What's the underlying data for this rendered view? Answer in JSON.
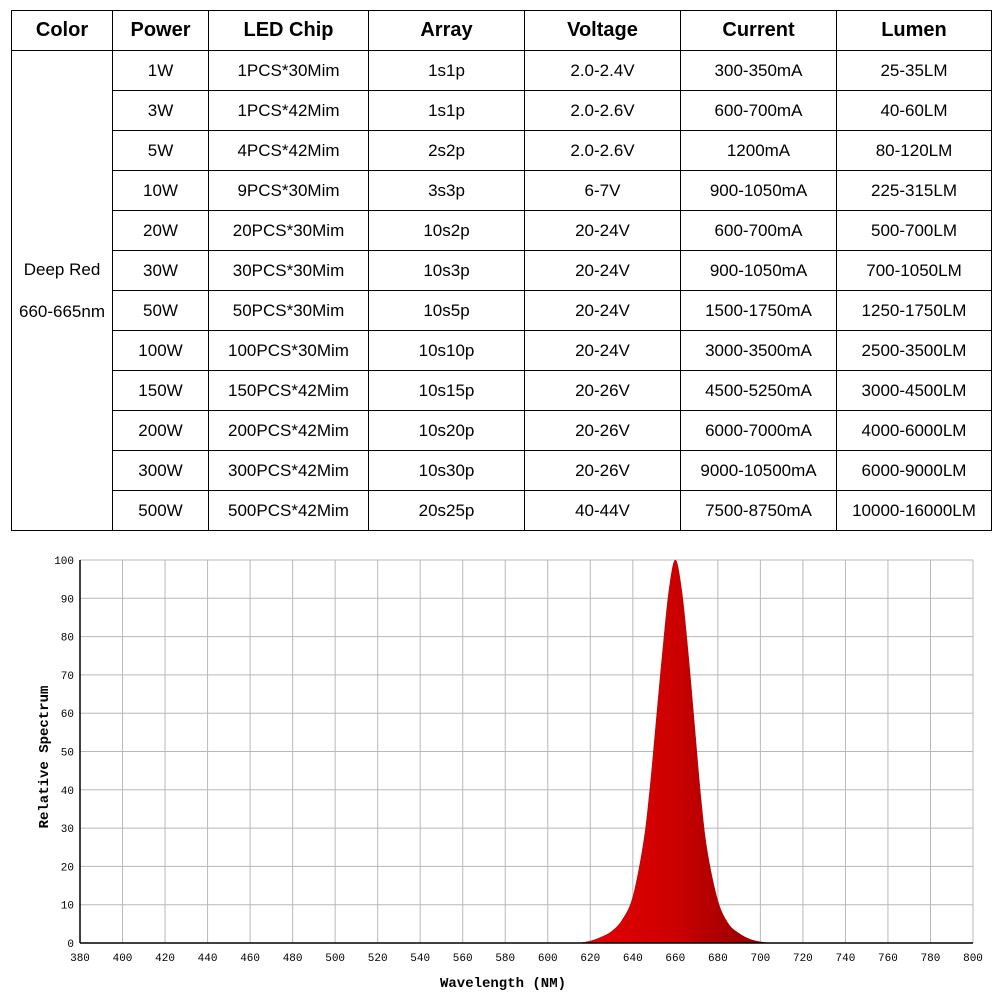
{
  "table": {
    "headers": [
      "Color",
      "Power",
      "LED Chip",
      "Array",
      "Voltage",
      "Current",
      "Lumen"
    ],
    "color_label": [
      "Deep Red",
      "660-665nm"
    ],
    "rows": [
      [
        "1W",
        "1PCS*30Mim",
        "1s1p",
        "2.0-2.4V",
        "300-350mA",
        "25-35LM"
      ],
      [
        "3W",
        "1PCS*42Mim",
        "1s1p",
        "2.0-2.6V",
        "600-700mA",
        "40-60LM"
      ],
      [
        "5W",
        "4PCS*42Mim",
        "2s2p",
        "2.0-2.6V",
        "1200mA",
        "80-120LM"
      ],
      [
        "10W",
        "9PCS*30Mim",
        "3s3p",
        "6-7V",
        "900-1050mA",
        "225-315LM"
      ],
      [
        "20W",
        "20PCS*30Mim",
        "10s2p",
        "20-24V",
        "600-700mA",
        "500-700LM"
      ],
      [
        "30W",
        "30PCS*30Mim",
        "10s3p",
        "20-24V",
        "900-1050mA",
        "700-1050LM"
      ],
      [
        "50W",
        "50PCS*30Mim",
        "10s5p",
        "20-24V",
        "1500-1750mA",
        "1250-1750LM"
      ],
      [
        "100W",
        "100PCS*30Mim",
        "10s10p",
        "20-24V",
        "3000-3500mA",
        "2500-3500LM"
      ],
      [
        "150W",
        "150PCS*42Mim",
        "10s15p",
        "20-26V",
        "4500-5250mA",
        "3000-4500LM"
      ],
      [
        "200W",
        "200PCS*42Mim",
        "10s20p",
        "20-26V",
        "6000-7000mA",
        "4000-6000LM"
      ],
      [
        "300W",
        "300PCS*42Mim",
        "10s30p",
        "20-26V",
        "9000-10500mA",
        "6000-9000LM"
      ],
      [
        "500W",
        "500PCS*42Mim",
        "20s25p",
        "40-44V",
        "7500-8750mA",
        "10000-16000LM"
      ]
    ]
  },
  "chart_data": {
    "type": "area",
    "xlabel": "Wavelength (NM)",
    "ylabel": "Relative Spectrum",
    "xlim": [
      380,
      800
    ],
    "ylim": [
      0,
      100
    ],
    "xticks": [
      380,
      400,
      420,
      440,
      460,
      480,
      500,
      520,
      540,
      560,
      580,
      600,
      620,
      640,
      660,
      680,
      700,
      720,
      740,
      760,
      780,
      800
    ],
    "yticks": [
      0,
      10,
      20,
      30,
      40,
      50,
      60,
      70,
      80,
      90,
      100
    ],
    "grid": true,
    "peak_color": "#cc0000",
    "series": [
      {
        "x": [
          615,
          620,
          625,
          630,
          635,
          640,
          645,
          648,
          651,
          654,
          657,
          660,
          663,
          666,
          669,
          672,
          675,
          680,
          685,
          690,
          695,
          700,
          705
        ],
        "y": [
          0,
          0.5,
          1.5,
          3,
          6,
          12,
          26,
          40,
          58,
          76,
          92,
          100,
          92,
          76,
          57,
          38,
          24,
          11,
          5,
          2.5,
          1,
          0.3,
          0
        ]
      }
    ]
  }
}
